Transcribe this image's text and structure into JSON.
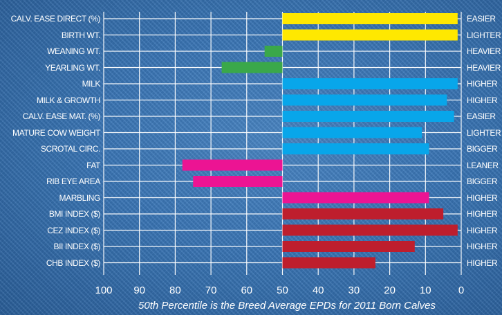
{
  "chart_data": {
    "type": "bar",
    "orientation": "horizontal",
    "xlabel": "50th Percentile is the Breed Average EPDs for 2011 Born Calves",
    "xlim": [
      100,
      0
    ],
    "x_reversed": true,
    "xticks": [
      "100",
      "90",
      "80",
      "70",
      "60",
      "50",
      "40",
      "30",
      "20",
      "10",
      "0"
    ],
    "grid": true,
    "categories": [
      "CALV. EASE DIRECT (%)",
      "BIRTH WT.",
      "WEANING WT.",
      "YEARLING WT.",
      "MILK",
      "MILK & GROWTH",
      "CALV. EASE MAT. (%)",
      "MATURE COW WEIGHT",
      "SCROTAL CIRC.",
      "FAT",
      "RIB EYE AREA",
      "MARBLING",
      "BMI INDEX ($)",
      "CEZ INDEX ($)",
      "BII INDEX ($)",
      "CHB INDEX ($)"
    ],
    "direction_labels": [
      "EASIER",
      "LIGHTER",
      "HEAVIER",
      "HEAVIER",
      "HIGHER",
      "HIGHER",
      "EASIER",
      "LIGHTER",
      "BIGGER",
      "LEANER",
      "BIGGER",
      "HIGHER",
      "HIGHER",
      "HIGHER",
      "HIGHER",
      "HIGHER"
    ],
    "values": [
      1,
      1,
      55,
      67,
      1,
      4,
      2,
      11,
      9,
      78,
      75,
      9,
      5,
      1,
      13,
      24
    ],
    "colors": [
      "#ffe800",
      "#ffe800",
      "#3aa84a",
      "#3aa84a",
      "#08a6ea",
      "#08a6ea",
      "#08a6ea",
      "#08a6ea",
      "#08a6ea",
      "#ec1493",
      "#ec1493",
      "#ec1493",
      "#be1e2d",
      "#be1e2d",
      "#be1e2d",
      "#be1e2d"
    ]
  }
}
